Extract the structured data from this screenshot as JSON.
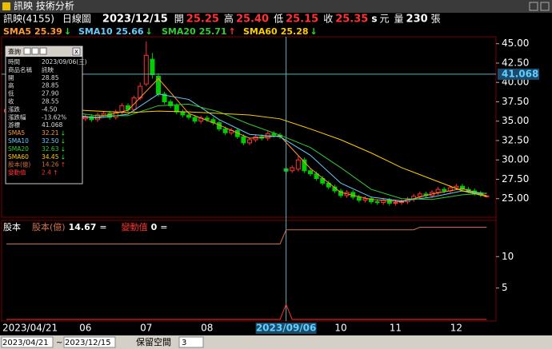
{
  "window_title": "訊映 技術分析",
  "header": {
    "symbol": "訊映(4155)",
    "period": "日線圖",
    "date": "2023/12/15",
    "open_label": "開",
    "open": "25.25",
    "high_label": "高",
    "high": "25.40",
    "low_label": "低",
    "low": "25.15",
    "close_label": "收",
    "close": "25.35",
    "unit_s": "s",
    "unit": "元",
    "volume_label": "量",
    "volume": "230",
    "volume_unit": "張"
  },
  "info_panel": {
    "title": "查詢",
    "close": "x",
    "rows": [
      [
        "時間",
        "2023/09/06(三)"
      ],
      [
        "商品名稱",
        "訊映"
      ],
      [
        "開",
        "28.85"
      ],
      [
        "高",
        "28.85"
      ],
      [
        "低",
        "27.90"
      ],
      [
        "收",
        "28.55"
      ],
      [
        "漲跌",
        "-4.50"
      ],
      [
        "漲跌幅",
        "-13.62%"
      ],
      [
        "游標",
        "41.068"
      ],
      [
        "SMA5",
        "32.21",
        "↓"
      ],
      [
        "SMA10",
        "32.50",
        "↓"
      ],
      [
        "SMA20",
        "32.63",
        "↓"
      ],
      [
        "SMA60",
        "34.45",
        "↓"
      ],
      [
        "股本(億)",
        "14.26",
        "↑"
      ],
      [
        "變動值",
        "2.4",
        "↑"
      ]
    ]
  },
  "chart_data": [
    {
      "type": "candlestick",
      "categories": [
        "2023/04/21",
        null,
        null,
        null,
        null,
        null,
        null,
        null,
        null,
        null,
        null,
        null,
        null,
        "06",
        null,
        null,
        null,
        null,
        null,
        null,
        null,
        null,
        null,
        "07",
        null,
        null,
        null,
        null,
        null,
        null,
        null,
        null,
        null,
        "08",
        null,
        null,
        null,
        null,
        null,
        null,
        null,
        null,
        null,
        null,
        null,
        null,
        "2023/09/06",
        null,
        null,
        null,
        null,
        null,
        null,
        null,
        null,
        "10",
        null,
        null,
        null,
        null,
        null,
        null,
        null,
        null,
        "11",
        null,
        null,
        null,
        null,
        null,
        null,
        null,
        null,
        null,
        "12",
        null,
        null,
        null,
        null,
        null
      ],
      "open": [
        36.2,
        36.5,
        36.8,
        36.2,
        36.0,
        36.4,
        37.0,
        36.6,
        36.0,
        35.6,
        35.2,
        35.5,
        35.0,
        35.3,
        35.6,
        35.2,
        35.8,
        36.0,
        35.5,
        36.2,
        37.0,
        36.5,
        38.0,
        39.8,
        43.0,
        40.8,
        38.5,
        37.5,
        37.0,
        36.2,
        35.8,
        35.5,
        35.0,
        35.4,
        35.2,
        34.8,
        34.0,
        33.5,
        33.8,
        33.0,
        32.2,
        32.6,
        33.0,
        32.8,
        33.4,
        33.2,
        28.85,
        28.6,
        28.8,
        30.0,
        28.6,
        28.2,
        27.6,
        27.0,
        26.5,
        26.0,
        25.4,
        25.8,
        25.2,
        24.8,
        25.0,
        24.6,
        24.5,
        24.8,
        24.4,
        24.5,
        24.6,
        24.9,
        25.3,
        25.6,
        25.4,
        25.8,
        26.2,
        26.0,
        26.4,
        26.6,
        26.2,
        26.0,
        25.7,
        25.25
      ],
      "high": [
        36.8,
        37.1,
        37.1,
        36.5,
        36.7,
        37.3,
        37.3,
        36.9,
        36.3,
        35.9,
        35.8,
        35.8,
        35.6,
        35.9,
        35.9,
        36.1,
        36.3,
        36.3,
        36.5,
        37.3,
        37.3,
        38.3,
        40.0,
        45.3,
        43.8,
        41.2,
        38.8,
        37.8,
        37.3,
        36.5,
        36.1,
        35.8,
        35.7,
        35.7,
        35.5,
        35.1,
        34.3,
        34.1,
        34.1,
        33.3,
        32.9,
        33.3,
        33.3,
        33.7,
        33.7,
        33.5,
        28.85,
        29.3,
        30.5,
        30.3,
        28.9,
        28.5,
        27.9,
        27.3,
        26.8,
        26.3,
        26.1,
        26.1,
        25.5,
        25.3,
        25.3,
        24.9,
        25.1,
        25.1,
        24.8,
        24.9,
        25.2,
        25.6,
        25.9,
        25.9,
        26.1,
        26.5,
        26.5,
        26.7,
        26.9,
        26.9,
        26.5,
        26.3,
        26.0,
        25.4
      ],
      "low": [
        35.9,
        36.2,
        35.9,
        35.7,
        35.7,
        36.1,
        36.3,
        35.7,
        35.3,
        34.9,
        34.9,
        34.7,
        34.7,
        35.0,
        34.9,
        34.9,
        35.5,
        35.2,
        35.2,
        35.9,
        36.2,
        36.2,
        37.7,
        39.5,
        40.5,
        38.2,
        37.2,
        36.7,
        35.9,
        35.5,
        35.2,
        34.7,
        34.7,
        34.9,
        34.5,
        33.7,
        33.2,
        33.2,
        32.7,
        31.9,
        31.9,
        32.3,
        32.5,
        32.5,
        32.9,
        32.7,
        27.9,
        28.3,
        28.5,
        28.3,
        27.9,
        27.3,
        26.7,
        26.2,
        25.7,
        25.1,
        25.1,
        24.9,
        24.5,
        24.5,
        24.3,
        24.2,
        24.2,
        24.1,
        24.1,
        24.2,
        24.3,
        24.6,
        25.0,
        25.1,
        25.1,
        25.5,
        25.7,
        25.7,
        26.1,
        25.9,
        25.7,
        25.4,
        25.2,
        25.15
      ],
      "close": [
        36.5,
        36.8,
        36.2,
        36.0,
        36.4,
        37.0,
        36.6,
        36.0,
        35.6,
        35.2,
        35.5,
        35.0,
        35.3,
        35.6,
        35.2,
        35.8,
        36.0,
        35.5,
        36.2,
        37.0,
        36.5,
        38.0,
        39.5,
        43.5,
        41.0,
        38.5,
        37.5,
        37.0,
        36.2,
        35.8,
        35.5,
        35.0,
        35.4,
        35.2,
        34.8,
        34.0,
        33.5,
        33.8,
        33.0,
        32.2,
        32.6,
        33.0,
        32.8,
        33.4,
        33.2,
        33.0,
        28.55,
        29.0,
        30.0,
        28.6,
        28.2,
        27.6,
        27.0,
        26.5,
        26.0,
        25.4,
        25.8,
        25.2,
        24.8,
        25.0,
        24.6,
        24.5,
        24.8,
        24.4,
        24.5,
        24.6,
        24.9,
        25.3,
        25.6,
        25.4,
        25.8,
        26.2,
        26.0,
        26.4,
        26.6,
        26.2,
        26.0,
        25.7,
        25.5,
        25.35
      ],
      "up_color": "#ff3333",
      "down_color": "#00cc00",
      "ylim": [
        22.6,
        45.9
      ],
      "yticks": [
        {
          "value": 25,
          "label": "25.00"
        },
        {
          "value": 27.5,
          "label": "27.50"
        },
        {
          "value": 30,
          "label": "30.00"
        },
        {
          "value": 32.5,
          "label": "32.50"
        },
        {
          "value": 35,
          "label": "35.00"
        },
        {
          "value": 37.5,
          "label": "37.50"
        },
        {
          "value": 40,
          "label": "40.00"
        },
        {
          "value": 42.5,
          "label": "42.50"
        },
        {
          "value": 45,
          "label": "45.00"
        }
      ],
      "series": [
        {
          "name": "SMA5",
          "value_label": "25.39",
          "trend": "↓",
          "color": "#ff9933",
          "x": [
            0,
            5,
            10,
            15,
            20,
            25,
            30,
            35,
            40,
            45,
            50,
            55,
            60,
            65,
            70,
            75,
            79
          ],
          "values": [
            36.3,
            36.5,
            35.5,
            35.5,
            36.4,
            40.5,
            36.0,
            34.5,
            32.8,
            33.1,
            28.9,
            25.8,
            24.9,
            24.6,
            25.6,
            26.3,
            25.39
          ]
        },
        {
          "name": "SMA10",
          "value_label": "25.66",
          "trend": "↓",
          "color": "#66ccff",
          "x": [
            0,
            5,
            10,
            15,
            20,
            25,
            30,
            35,
            40,
            45,
            50,
            55,
            60,
            65,
            70,
            75,
            79
          ],
          "values": [
            36.4,
            36.4,
            35.9,
            35.4,
            35.9,
            38.5,
            37.8,
            35.2,
            33.3,
            33.0,
            30.6,
            27.0,
            25.2,
            24.7,
            25.2,
            26.0,
            25.66
          ]
        },
        {
          "name": "SMA20",
          "value_label": "25.71",
          "trend": "↑",
          "color": "#33cc33",
          "x": [
            0,
            5,
            10,
            15,
            20,
            25,
            30,
            35,
            40,
            45,
            50,
            55,
            60,
            65,
            70,
            75,
            79
          ],
          "values": [
            36.6,
            36.5,
            36.2,
            35.7,
            35.7,
            37.0,
            37.2,
            36.2,
            34.6,
            33.2,
            31.6,
            29.0,
            26.2,
            25.0,
            24.9,
            25.5,
            25.71
          ]
        },
        {
          "name": "SMA60",
          "value_label": "25.28",
          "trend": "↓",
          "color": "#ffcc00",
          "x": [
            0,
            5,
            10,
            15,
            20,
            25,
            30,
            35,
            40,
            45,
            50,
            55,
            60,
            65,
            70,
            75,
            79
          ],
          "values": [
            36.8,
            36.7,
            36.5,
            36.3,
            36.1,
            36.3,
            36.2,
            36.0,
            35.8,
            35.3,
            34.0,
            32.6,
            30.9,
            29.0,
            27.5,
            26.0,
            25.28
          ]
        }
      ]
    },
    {
      "type": "line",
      "panel_label": "股本",
      "ylim": [
        0,
        15.5
      ],
      "yticks": [
        5,
        10
      ],
      "series": [
        {
          "name": "股本(億)",
          "value_label": "14.67",
          "marker": "=",
          "color": "#d0704a",
          "x": [
            0,
            45,
            46,
            67,
            68,
            79
          ],
          "values": [
            12.0,
            12.0,
            14.26,
            14.26,
            14.67,
            14.67
          ]
        },
        {
          "name": "變動值",
          "value_label": "0",
          "marker": "=",
          "color": "#ff3333",
          "x": [
            0,
            45,
            46,
            47,
            79
          ],
          "values": [
            0,
            0,
            2.4,
            0,
            0
          ]
        }
      ]
    }
  ],
  "footer": {
    "from": "2023/04/21",
    "tilde": "~",
    "to": "2023/12/15",
    "reserve_label": "保留空間",
    "reserve": "3"
  }
}
